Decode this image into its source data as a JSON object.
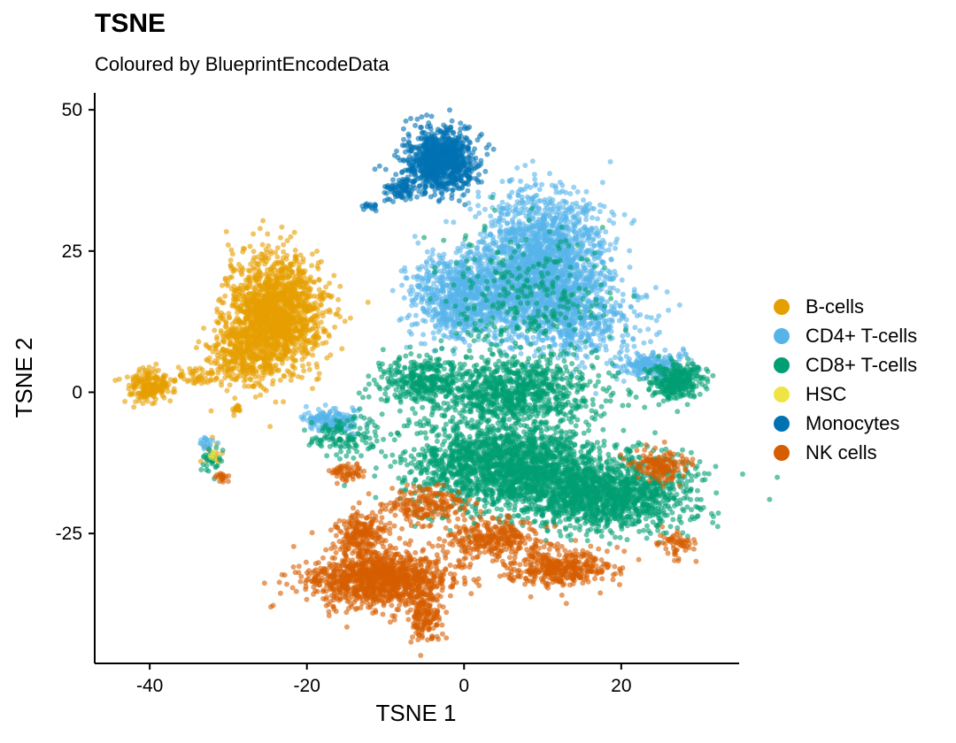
{
  "chart_data": {
    "type": "scatter",
    "title": "TSNE",
    "subtitle": "Coloured by BlueprintEncodeData",
    "xlabel": "TSNE 1",
    "ylabel": "TSNE 2",
    "xlim": [
      -47,
      35
    ],
    "ylim": [
      -48,
      53
    ],
    "xticks": [
      -40,
      -20,
      0,
      20
    ],
    "yticks": [
      -25,
      0,
      25,
      50
    ],
    "xtick_labels": [
      "-40",
      "-20",
      "0",
      "20"
    ],
    "ytick_labels": [
      "-25",
      "0",
      "25",
      "50"
    ],
    "grid": false,
    "legend_position": "right",
    "series": [
      {
        "name": "B-cells",
        "color": "#E69F00",
        "clusters": [
          {
            "cx": -24,
            "cy": 14,
            "rx": 5.5,
            "ry": 9,
            "n": 1600
          },
          {
            "cx": -28,
            "cy": 7,
            "rx": 4,
            "ry": 5,
            "n": 300
          },
          {
            "cx": -40,
            "cy": 1,
            "rx": 2.5,
            "ry": 2.5,
            "n": 200
          },
          {
            "cx": -34,
            "cy": 3,
            "rx": 4,
            "ry": 1.5,
            "n": 60
          },
          {
            "cx": -29,
            "cy": -3,
            "rx": 0.5,
            "ry": 1,
            "n": 15
          },
          {
            "cx": -32,
            "cy": -11,
            "rx": 1,
            "ry": 2,
            "n": 20
          }
        ]
      },
      {
        "name": "CD4+ T-cells",
        "color": "#56B4E9",
        "clusters": [
          {
            "cx": 10,
            "cy": 23,
            "rx": 7,
            "ry": 11,
            "n": 1800
          },
          {
            "cx": 0,
            "cy": 17,
            "rx": 6,
            "ry": 7,
            "n": 900
          },
          {
            "cx": 14,
            "cy": 13,
            "rx": 8,
            "ry": 6,
            "n": 500
          },
          {
            "cx": 24,
            "cy": 5,
            "rx": 4,
            "ry": 2,
            "n": 200
          },
          {
            "cx": -17,
            "cy": -5,
            "rx": 3,
            "ry": 2,
            "n": 150
          },
          {
            "cx": -33,
            "cy": -9,
            "rx": 1,
            "ry": 1,
            "n": 20
          }
        ]
      },
      {
        "name": "CD8+ T-cells",
        "color": "#009E73",
        "clusters": [
          {
            "cx": 5,
            "cy": -13,
            "rx": 11,
            "ry": 7,
            "n": 1800
          },
          {
            "cx": 18,
            "cy": -18,
            "rx": 10,
            "ry": 6,
            "n": 1400
          },
          {
            "cx": 27,
            "cy": 2,
            "rx": 3,
            "ry": 3,
            "n": 300
          },
          {
            "cx": -6,
            "cy": 2,
            "rx": 5,
            "ry": 4,
            "n": 300
          },
          {
            "cx": 6,
            "cy": 0,
            "rx": 10,
            "ry": 5,
            "n": 900
          },
          {
            "cx": 8,
            "cy": 16,
            "rx": 10,
            "ry": 12,
            "n": 300
          },
          {
            "cx": -15,
            "cy": -8,
            "rx": 4,
            "ry": 3,
            "n": 120
          },
          {
            "cx": -32,
            "cy": -12,
            "rx": 1,
            "ry": 2,
            "n": 30
          }
        ]
      },
      {
        "name": "HSC",
        "color": "#F0E442",
        "clusters": [
          {
            "cx": -32,
            "cy": -11,
            "rx": 0.6,
            "ry": 1,
            "n": 6
          }
        ]
      },
      {
        "name": "Monocytes",
        "color": "#0072B2",
        "clusters": [
          {
            "cx": -3,
            "cy": 41,
            "rx": 4,
            "ry": 5,
            "n": 900
          },
          {
            "cx": -8,
            "cy": 36,
            "rx": 2,
            "ry": 2,
            "n": 80
          },
          {
            "cx": -12,
            "cy": 33,
            "rx": 1,
            "ry": 0.8,
            "n": 15
          }
        ]
      },
      {
        "name": "NK cells",
        "color": "#D55E00",
        "clusters": [
          {
            "cx": -11,
            "cy": -33,
            "rx": 8,
            "ry": 4.5,
            "n": 1200
          },
          {
            "cx": -13,
            "cy": -25,
            "rx": 3,
            "ry": 3,
            "n": 200
          },
          {
            "cx": -5,
            "cy": -40,
            "rx": 2,
            "ry": 3.5,
            "n": 150
          },
          {
            "cx": 12,
            "cy": -31,
            "rx": 6,
            "ry": 3,
            "n": 400
          },
          {
            "cx": 4,
            "cy": -26,
            "rx": 5,
            "ry": 3,
            "n": 300
          },
          {
            "cx": -5,
            "cy": -20,
            "rx": 5,
            "ry": 3,
            "n": 200
          },
          {
            "cx": 25,
            "cy": -13,
            "rx": 3,
            "ry": 2.5,
            "n": 150
          },
          {
            "cx": 27,
            "cy": -27,
            "rx": 2,
            "ry": 2,
            "n": 60
          },
          {
            "cx": -15,
            "cy": -14,
            "rx": 2,
            "ry": 1.5,
            "n": 60
          },
          {
            "cx": -31,
            "cy": -15,
            "rx": 1,
            "ry": 0.8,
            "n": 20
          }
        ]
      }
    ]
  }
}
